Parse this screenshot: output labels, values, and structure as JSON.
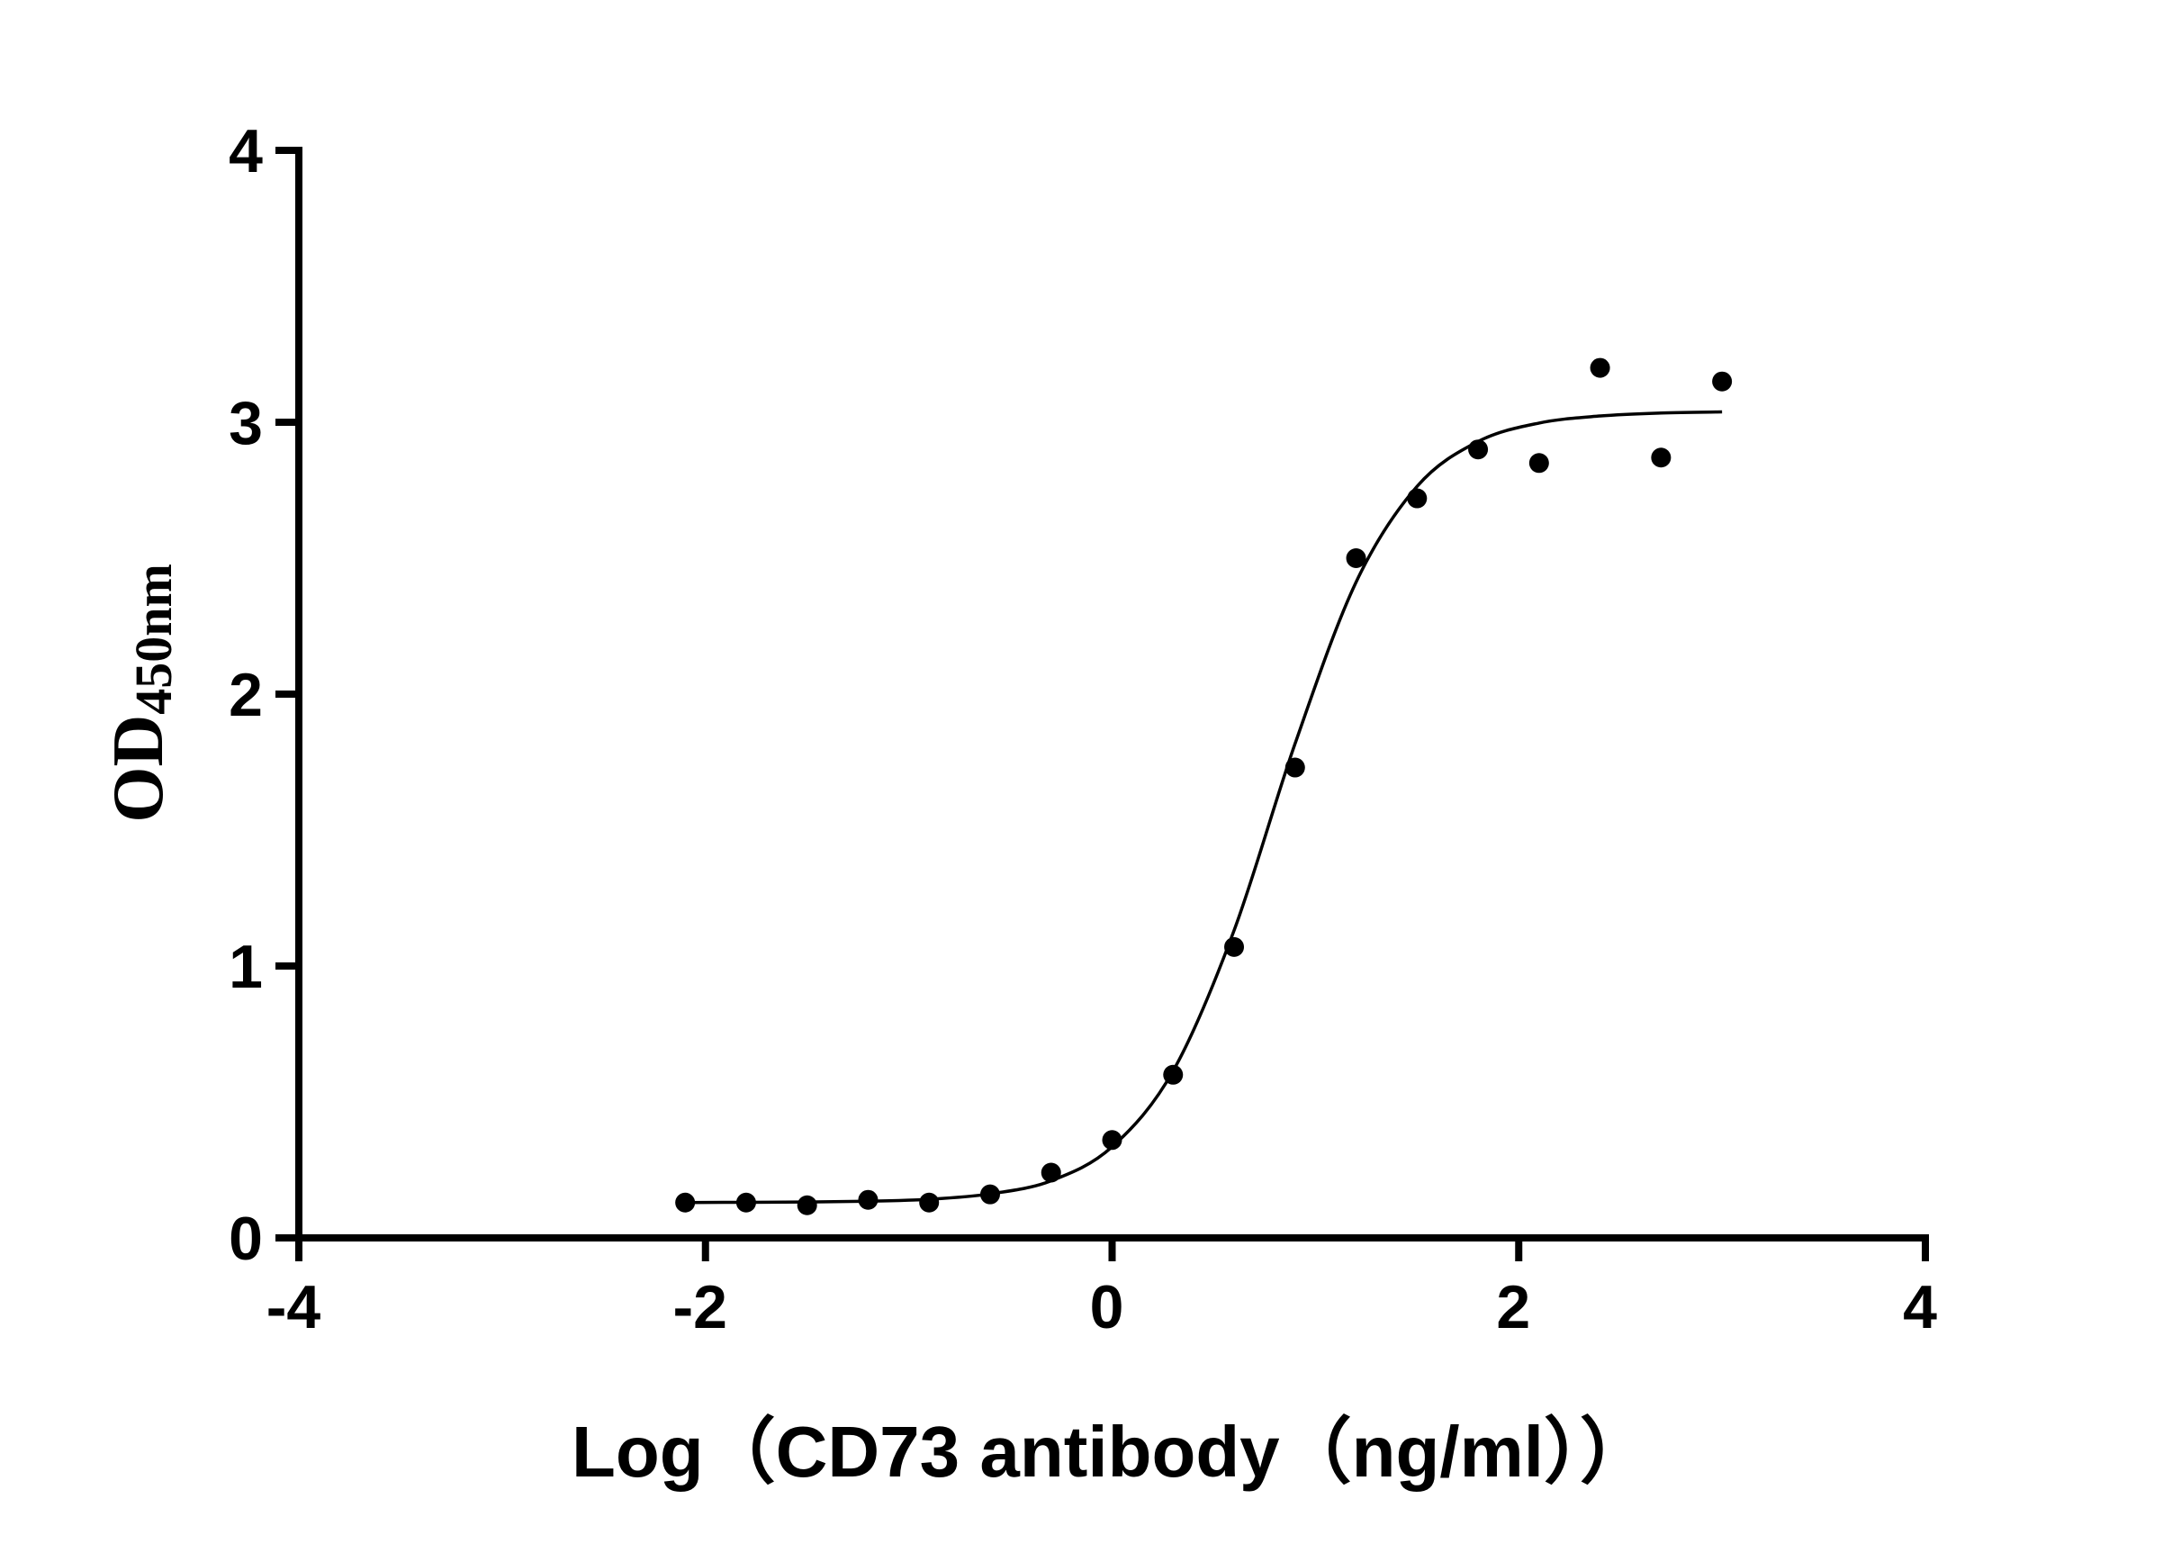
{
  "chart_data": {
    "type": "scatter",
    "xlabel": "Log（CD73 antibody（ng/ml））",
    "ylabel": "OD",
    "ylabel_sub": "450nm",
    "xlim": [
      -4,
      4
    ],
    "ylim": [
      0,
      4
    ],
    "xticks": [
      -4,
      -2,
      0,
      2,
      4
    ],
    "yticks": [
      0,
      1,
      2,
      3,
      4
    ],
    "series": [
      {
        "type": "scatter",
        "color": "#000000",
        "x": [
          -2.1,
          -1.8,
          -1.5,
          -1.2,
          -0.9,
          -0.6,
          -0.3,
          0,
          0.3,
          0.6,
          0.9,
          1.2,
          1.5,
          1.8,
          2.1,
          2.4,
          2.7,
          3.0
        ],
        "values": [
          0.13,
          0.13,
          0.12,
          0.14,
          0.13,
          0.16,
          0.24,
          0.36,
          0.6,
          1.07,
          1.73,
          2.5,
          2.72,
          2.9,
          2.85,
          3.2,
          2.87,
          3.15
        ]
      },
      {
        "type": "line",
        "color": "#000000",
        "x": [
          -2.1,
          -1.8,
          -1.5,
          -1.2,
          -0.9,
          -0.6,
          -0.3,
          0,
          0.3,
          0.6,
          0.9,
          1.2,
          1.5,
          1.8,
          2.1,
          2.4,
          2.7,
          3.0
        ],
        "values": [
          0.13,
          0.131,
          0.132,
          0.135,
          0.142,
          0.162,
          0.21,
          0.335,
          0.614,
          1.131,
          1.818,
          2.412,
          2.764,
          2.929,
          2.997,
          3.023,
          3.034,
          3.038
        ]
      }
    ]
  }
}
